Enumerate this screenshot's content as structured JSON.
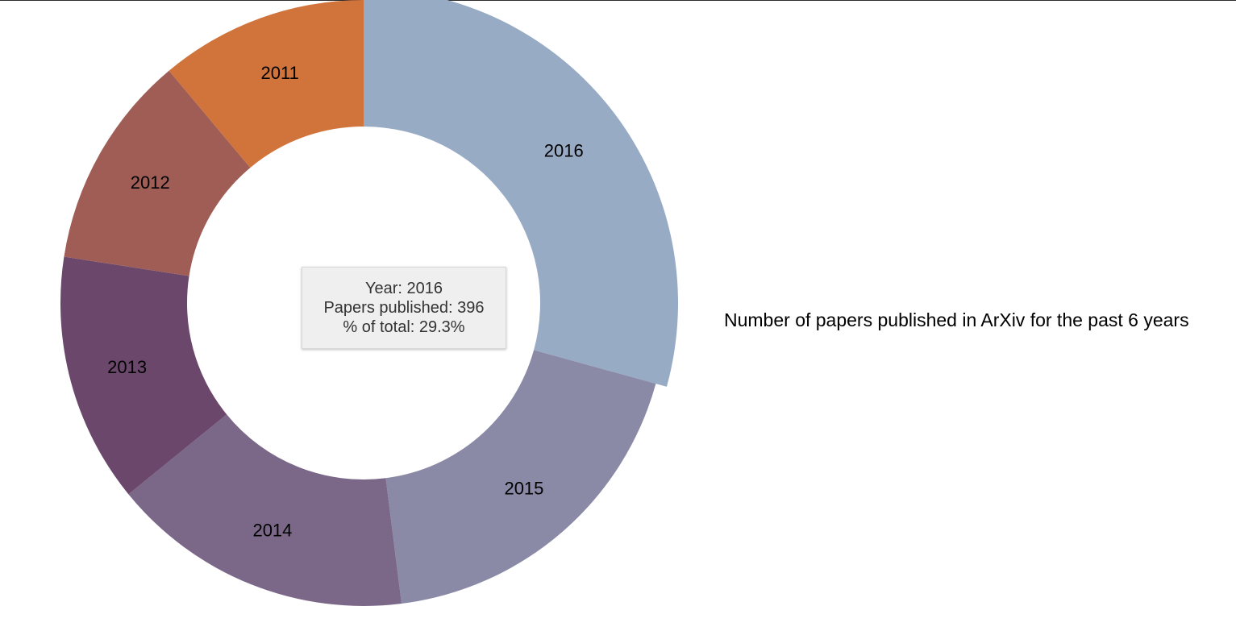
{
  "chart_data": {
    "type": "pie",
    "title": "Number of papers published in ArXiv for the past 6 years",
    "categories": [
      "2011",
      "2012",
      "2013",
      "2014",
      "2015",
      "2016"
    ],
    "values": [
      150,
      155,
      180,
      218,
      253,
      396
    ],
    "colors": [
      "#d0743c",
      "#a05d56",
      "#6b486b",
      "#7b6888",
      "#8a89a6",
      "#98abc5"
    ],
    "highlighted": "2016",
    "legend": "none"
  },
  "tooltip": {
    "year_line": "Year: 2016",
    "papers_line": "Papers published: 396",
    "percent_line": "% of total: 29.3%"
  }
}
